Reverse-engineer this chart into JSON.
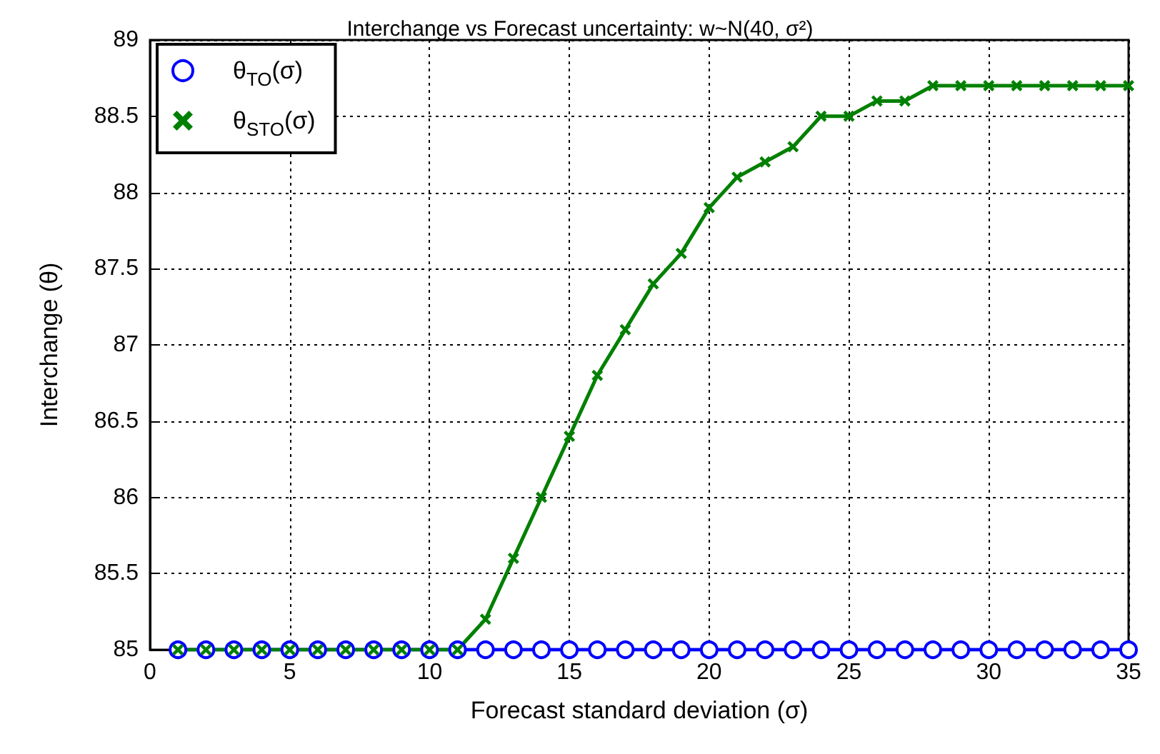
{
  "chart_data": {
    "type": "line",
    "title": "Interchange vs Forecast uncertainty: w~N(40, σ²)",
    "xlabel": "Forecast standard deviation (σ)",
    "ylabel": "Interchange (θ)",
    "x": [
      1,
      2,
      3,
      4,
      5,
      6,
      7,
      8,
      9,
      10,
      11,
      12,
      13,
      14,
      15,
      16,
      17,
      18,
      19,
      20,
      21,
      22,
      23,
      24,
      25,
      26,
      27,
      28,
      29,
      30,
      31,
      32,
      33,
      34,
      35
    ],
    "series": [
      {
        "name": "θ$_{TO}$(σ)",
        "color": "#0000ff",
        "marker": "circle",
        "values": [
          85,
          85,
          85,
          85,
          85,
          85,
          85,
          85,
          85,
          85,
          85,
          85,
          85,
          85,
          85,
          85,
          85,
          85,
          85,
          85,
          85,
          85,
          85,
          85,
          85,
          85,
          85,
          85,
          85,
          85,
          85,
          85,
          85,
          85,
          85
        ]
      },
      {
        "name": "θ$_{STO}$(σ)",
        "color": "#008000",
        "marker": "cross",
        "values": [
          85,
          85,
          85,
          85,
          85,
          85,
          85,
          85,
          85,
          85,
          85,
          85.2,
          85.6,
          86,
          86.4,
          86.8,
          87.1,
          87.4,
          87.6,
          87.9,
          88.1,
          88.2,
          88.3,
          88.5,
          88.5,
          88.6,
          88.6,
          88.7,
          88.7,
          88.7,
          88.7,
          88.7,
          88.7,
          88.7,
          88.7
        ]
      }
    ],
    "xlim": [
      0,
      35
    ],
    "xticks": [
      0,
      5,
      10,
      15,
      20,
      25,
      30,
      35
    ],
    "ylim": [
      85,
      89
    ],
    "yticks": [
      85,
      85.5,
      86,
      86.5,
      87,
      87.5,
      88,
      88.5,
      89
    ],
    "grid": true,
    "legend": "top left",
    "line_style": "solid"
  }
}
